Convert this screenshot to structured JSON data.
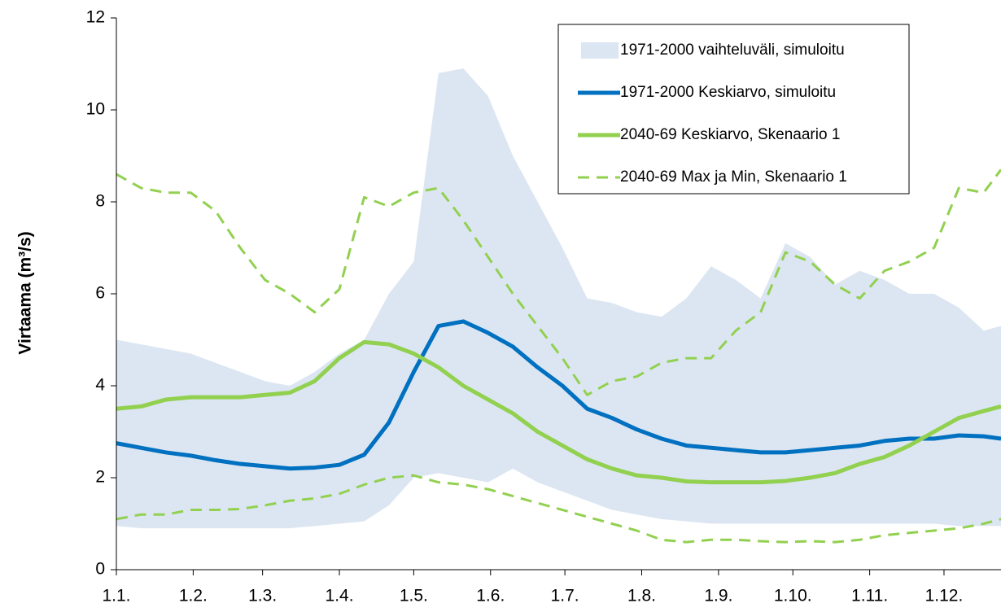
{
  "chart_data": {
    "type": "line",
    "y_label": "Virtaama (m³/s)",
    "x": [
      0,
      10,
      20,
      30,
      40,
      50,
      60,
      70,
      80,
      90,
      100,
      110,
      120,
      130,
      140,
      150,
      160,
      170,
      180,
      190,
      200,
      210,
      220,
      230,
      240,
      250,
      260,
      270,
      280,
      290,
      300,
      310,
      320,
      330,
      340,
      350,
      357
    ],
    "xlim": [
      0,
      357
    ],
    "xticks": [
      {
        "value": 0,
        "label": "1.1."
      },
      {
        "value": 31,
        "label": "1.2."
      },
      {
        "value": 59,
        "label": "1.3."
      },
      {
        "value": 90,
        "label": "1.4."
      },
      {
        "value": 120,
        "label": "1.5."
      },
      {
        "value": 151,
        "label": "1.6."
      },
      {
        "value": 181,
        "label": "1.7."
      },
      {
        "value": 212,
        "label": "1.8."
      },
      {
        "value": 243,
        "label": "1.9."
      },
      {
        "value": 273,
        "label": "1.10."
      },
      {
        "value": 304,
        "label": "1.11."
      },
      {
        "value": 334,
        "label": "1.12."
      }
    ],
    "ylim": [
      0,
      12
    ],
    "yticks": [
      0,
      2,
      4,
      6,
      8,
      10,
      12
    ],
    "legend": "upper right",
    "series": [
      {
        "name": "1971-2000 vaihteluväli, simuloitu",
        "kind": "band",
        "color": "#dce6f2",
        "upper": [
          5.0,
          4.9,
          4.8,
          4.7,
          4.5,
          4.3,
          4.1,
          4.0,
          4.3,
          4.7,
          5.0,
          6.0,
          6.7,
          10.8,
          10.9,
          10.3,
          9.0,
          8.0,
          7.0,
          5.9,
          5.8,
          5.6,
          5.5,
          5.9,
          6.6,
          6.3,
          5.9,
          7.1,
          6.8,
          6.2,
          6.5,
          6.3,
          6.0,
          6.0,
          5.7,
          5.2,
          5.3
        ],
        "lower": [
          0.95,
          0.9,
          0.9,
          0.9,
          0.9,
          0.9,
          0.9,
          0.9,
          0.95,
          1.0,
          1.05,
          1.4,
          2.0,
          2.1,
          2.0,
          1.9,
          2.2,
          1.9,
          1.7,
          1.5,
          1.3,
          1.2,
          1.1,
          1.05,
          1.0,
          1.0,
          1.0,
          1.0,
          1.0,
          1.0,
          1.0,
          1.0,
          1.0,
          1.0,
          0.95,
          0.95,
          0.95
        ]
      },
      {
        "name": "1971-2000 Keskiarvo, simuloitu",
        "color": "#0070c0",
        "width": 5,
        "values": [
          2.75,
          2.65,
          2.55,
          2.48,
          2.38,
          2.3,
          2.25,
          2.2,
          2.22,
          2.28,
          2.5,
          3.2,
          4.3,
          5.3,
          5.4,
          5.15,
          4.85,
          4.4,
          4.0,
          3.5,
          3.3,
          3.05,
          2.85,
          2.7,
          2.65,
          2.6,
          2.55,
          2.55,
          2.6,
          2.65,
          2.7,
          2.8,
          2.85,
          2.85,
          2.92,
          2.9,
          2.85
        ]
      },
      {
        "name": "2040-69 Keskiarvo, Skenaario 1",
        "color": "#92d050",
        "width": 5,
        "values": [
          3.5,
          3.55,
          3.7,
          3.75,
          3.75,
          3.75,
          3.8,
          3.85,
          4.1,
          4.6,
          4.95,
          4.9,
          4.7,
          4.4,
          4.0,
          3.7,
          3.4,
          3.0,
          2.7,
          2.4,
          2.2,
          2.05,
          2.0,
          1.92,
          1.9,
          1.9,
          1.9,
          1.93,
          2.0,
          2.1,
          2.3,
          2.45,
          2.7,
          3.0,
          3.3,
          3.45,
          3.55
        ]
      },
      {
        "name": "2040-69 Max ja Min, Skenaario 1",
        "color": "#92d050",
        "width": 3,
        "dashed": true,
        "values": [
          8.6,
          8.3,
          8.2,
          8.2,
          7.8,
          7.0,
          6.3,
          6.0,
          5.6,
          6.1,
          8.1,
          7.9,
          8.2,
          8.3,
          7.6,
          6.8,
          6.0,
          5.3,
          4.6,
          3.8,
          4.1,
          4.2,
          4.5,
          4.6,
          4.6,
          5.2,
          5.6,
          6.9,
          6.7,
          6.2,
          5.9,
          6.5,
          6.7,
          7.0,
          8.3,
          8.2,
          8.7
        ],
        "values2": [
          1.1,
          1.2,
          1.2,
          1.3,
          1.3,
          1.32,
          1.4,
          1.5,
          1.55,
          1.65,
          1.85,
          2.0,
          2.05,
          1.9,
          1.85,
          1.75,
          1.6,
          1.45,
          1.3,
          1.15,
          1.0,
          0.85,
          0.65,
          0.6,
          0.65,
          0.65,
          0.62,
          0.6,
          0.62,
          0.6,
          0.65,
          0.75,
          0.8,
          0.85,
          0.9,
          1.0,
          1.1
        ]
      }
    ]
  }
}
